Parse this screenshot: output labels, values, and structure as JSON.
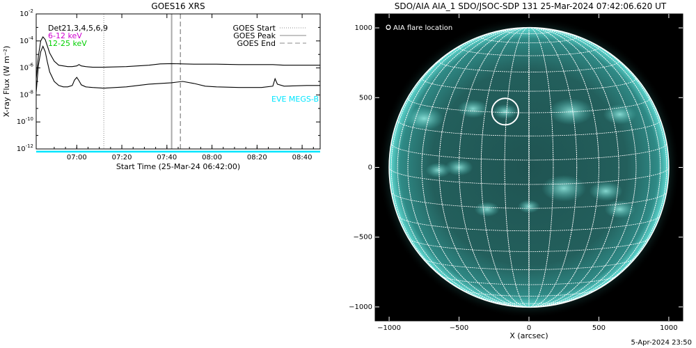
{
  "chart_data": [
    {
      "type": "line",
      "title": "GOES16 XRS",
      "xlabel": "Start Time (25-Mar-24 06:42:00)",
      "ylabel": "X-ray Flux (W m⁻²)",
      "y_scale": "log",
      "ylim_exponent": [
        -12,
        -2
      ],
      "y_ticks": [
        {
          "base": "10",
          "exp": "-2"
        },
        {
          "base": "10",
          "exp": "-4"
        },
        {
          "base": "10",
          "exp": "-6"
        },
        {
          "base": "10",
          "exp": "-8"
        },
        {
          "base": "10",
          "exp": "-10"
        },
        {
          "base": "10",
          "exp": "-12"
        }
      ],
      "x_range_minutes_after_start": [
        0,
        126
      ],
      "x_ticks": [
        {
          "label": "07:00",
          "minutes": 18
        },
        {
          "label": "07:20",
          "minutes": 38
        },
        {
          "label": "07:40",
          "minutes": 58
        },
        {
          "label": "08:00",
          "minutes": 78
        },
        {
          "label": "08:20",
          "minutes": 98
        },
        {
          "label": "08:40",
          "minutes": 118
        }
      ],
      "legend_left": [
        {
          "text": "Det21,3,4,5,6,9",
          "color": "#000000"
        },
        {
          "text": "6-12  keV",
          "color": "#d000d0"
        },
        {
          "text": "12-25  keV",
          "color": "#00d000"
        }
      ],
      "legend_right": [
        {
          "text": "GOES Start",
          "style": "dotted"
        },
        {
          "text": "GOES Peak",
          "style": "solid"
        },
        {
          "text": "GOES End",
          "style": "dashed"
        }
      ],
      "eve_label": "EVE MEGS-B",
      "eve_color": "#00e5ff",
      "markers_minutes": {
        "start": 30,
        "peak": 60.1,
        "end": 64
      },
      "series": [
        {
          "color": "#000000",
          "x": [
            0,
            1,
            2,
            3,
            4,
            5,
            6,
            8,
            10,
            12,
            14,
            16,
            18,
            19,
            20,
            22,
            25,
            30,
            40,
            50,
            55,
            60,
            65,
            70,
            80,
            90,
            100,
            105,
            110,
            120,
            126
          ],
          "y_exp": [
            -6.8,
            -5.1,
            -4.0,
            -3.7,
            -3.9,
            -4.4,
            -4.9,
            -5.5,
            -5.8,
            -5.85,
            -5.9,
            -5.9,
            -5.85,
            -5.75,
            -5.85,
            -5.9,
            -5.95,
            -5.95,
            -5.9,
            -5.8,
            -5.7,
            -5.68,
            -5.7,
            -5.72,
            -5.72,
            -5.75,
            -5.75,
            -5.75,
            -5.8,
            -5.8,
            -5.8
          ]
        },
        {
          "color": "#000000",
          "x": [
            0,
            1,
            2,
            3,
            4,
            5,
            6,
            8,
            10,
            12,
            14,
            16,
            17,
            18,
            19,
            20,
            22,
            25,
            30,
            40,
            50,
            55,
            60,
            65,
            70,
            75,
            80,
            90,
            100,
            105,
            106,
            107,
            110,
            120,
            126
          ],
          "y_exp": [
            -7.8,
            -5.8,
            -4.8,
            -4.4,
            -4.8,
            -5.6,
            -6.3,
            -7.0,
            -7.3,
            -7.4,
            -7.4,
            -7.3,
            -6.9,
            -6.7,
            -6.95,
            -7.25,
            -7.4,
            -7.45,
            -7.5,
            -7.4,
            -7.2,
            -7.15,
            -7.1,
            -7.0,
            -7.15,
            -7.35,
            -7.4,
            -7.45,
            -7.45,
            -7.35,
            -6.8,
            -7.2,
            -7.35,
            -7.3,
            -7.3
          ]
        },
        {
          "color": "#00e5ff",
          "x": [
            0,
            126
          ],
          "y_exp": [
            -12.2,
            -12.2
          ]
        }
      ]
    },
    {
      "type": "image",
      "title": "SDO/AIA AIA_1 SDO/JSOC-SDP 131 25-Mar-2024 07:42:06.620 UT",
      "xlabel": "X (arcsec)",
      "xlim": [
        -1100,
        1100
      ],
      "ylim": [
        -1100,
        1100
      ],
      "x_ticks": [
        -1000,
        -500,
        0,
        500,
        1000
      ],
      "y_ticks": [
        -1000,
        -500,
        0,
        500,
        1000
      ],
      "x_tick_labels": [
        "−1000",
        "−500",
        "0",
        "500",
        "1000"
      ],
      "y_tick_labels": [
        "−1000",
        "−500",
        "0",
        "500",
        "1000"
      ],
      "solar_radius_arcsec": 1000,
      "legend": "O  AIA flare location",
      "flare_location_arcsec": [
        -170,
        400
      ],
      "flare_circle_radius_arcsec": 95
    }
  ],
  "footer": "5-Apr-2024 23:50"
}
